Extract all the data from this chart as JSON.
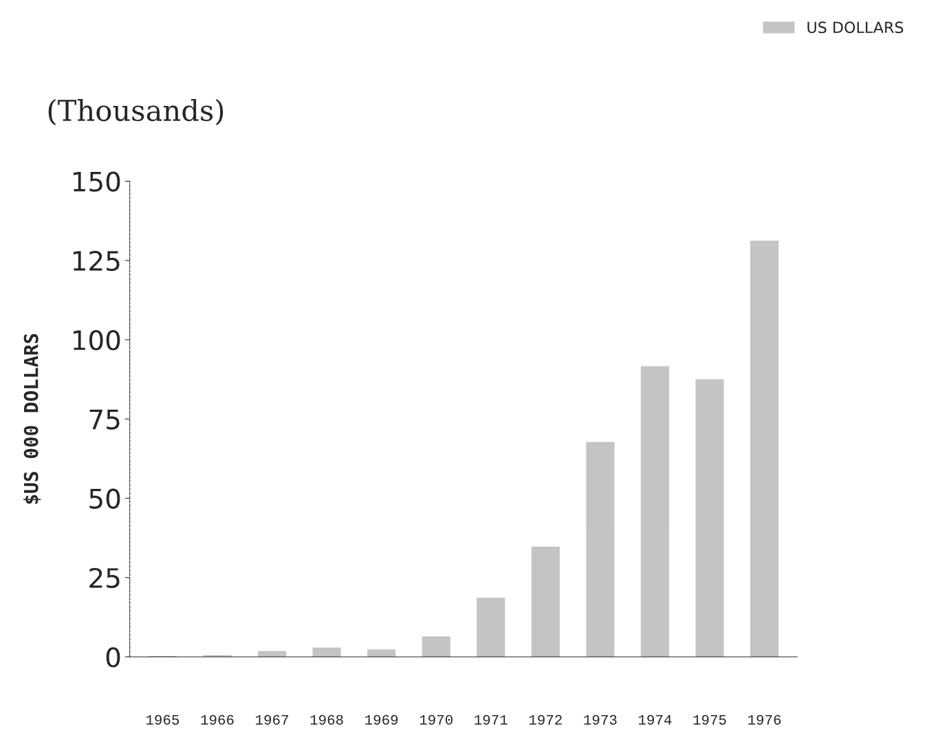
{
  "chart_data": {
    "type": "bar",
    "title": "(Thousands)",
    "ylabel": "$US 000 DOLLARS",
    "categories": [
      "1965",
      "1966",
      "1967",
      "1968",
      "1969",
      "1970",
      "1971",
      "1972",
      "1973",
      "1974",
      "1975",
      "1976"
    ],
    "series": [
      {
        "name": "US DOLLARS",
        "color": "#c4c4c4",
        "values": [
          0.1,
          0.4,
          1.7,
          2.8,
          2.2,
          6.3,
          18.5,
          34.6,
          67.6,
          91.5,
          87.4,
          131.1
        ]
      }
    ],
    "ylim": [
      0,
      150
    ],
    "yticks": [
      0,
      25,
      50,
      75,
      100,
      125,
      150
    ],
    "grid": false,
    "legend": "top right"
  }
}
